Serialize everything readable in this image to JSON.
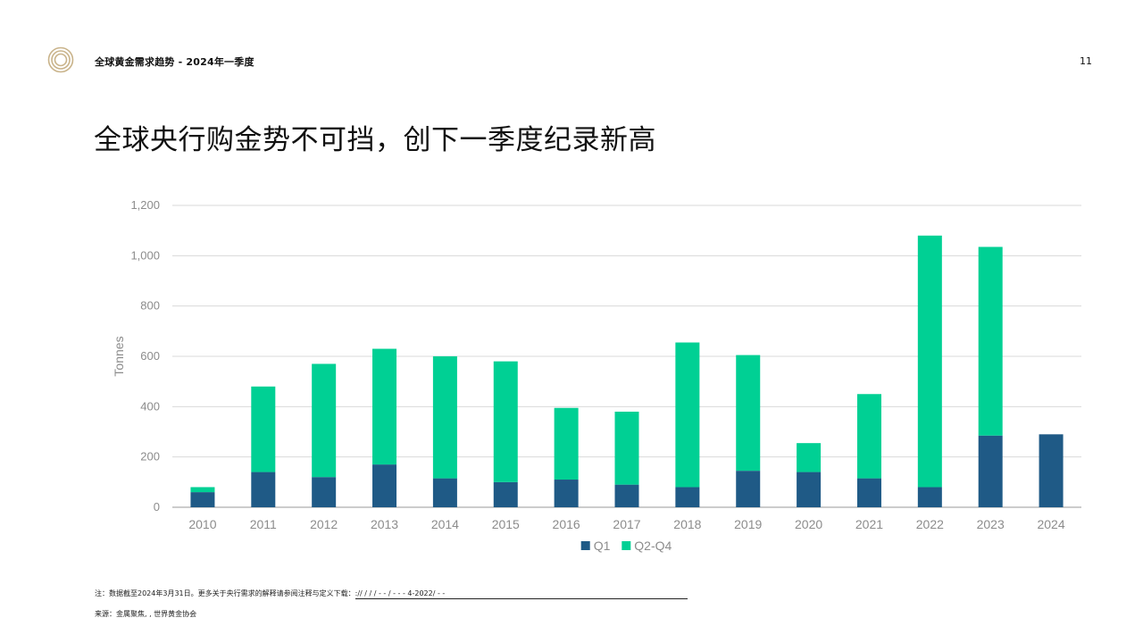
{
  "header": {
    "report_title": "全球黄金需求趋势 - 2024年一季度",
    "page_number": "11",
    "logo_icon": "concentric-rings-logo"
  },
  "headline": "全球央行购金势不可挡，创下一季度纪录新高",
  "chart_data": {
    "type": "bar",
    "stacked": true,
    "categories": [
      "2010",
      "2011",
      "2012",
      "2013",
      "2014",
      "2015",
      "2016",
      "2017",
      "2018",
      "2019",
      "2020",
      "2021",
      "2022",
      "2023",
      "2024"
    ],
    "series": [
      {
        "name": "Q1",
        "color": "#1f5a86",
        "values": [
          60,
          140,
          120,
          170,
          115,
          100,
          110,
          90,
          80,
          145,
          140,
          115,
          80,
          285,
          290
        ]
      },
      {
        "name": "Q2-Q4",
        "color": "#00d094",
        "values": [
          20,
          340,
          450,
          460,
          485,
          480,
          285,
          290,
          575,
          460,
          115,
          335,
          1000,
          750,
          0
        ]
      }
    ],
    "ylabel": "Tonnes",
    "ylim": [
      0,
      1200
    ],
    "yticks": [
      0,
      200,
      400,
      600,
      800,
      1000,
      1200
    ],
    "ytick_labels": [
      "0",
      "200",
      "400",
      "600",
      "800",
      "1,000",
      "1,200"
    ],
    "grid": true,
    "legend_position": "bottom"
  },
  "footnote": {
    "text": "注：数据截至2024年3月31日。更多关于央行需求的解释请参阅注释与定义下载：",
    "link_text": "://          /      /      /    -     -     /    -     -    - 4-2022/    -   -"
  },
  "source": "来源：金属聚焦,                  , 世界黄金协会"
}
